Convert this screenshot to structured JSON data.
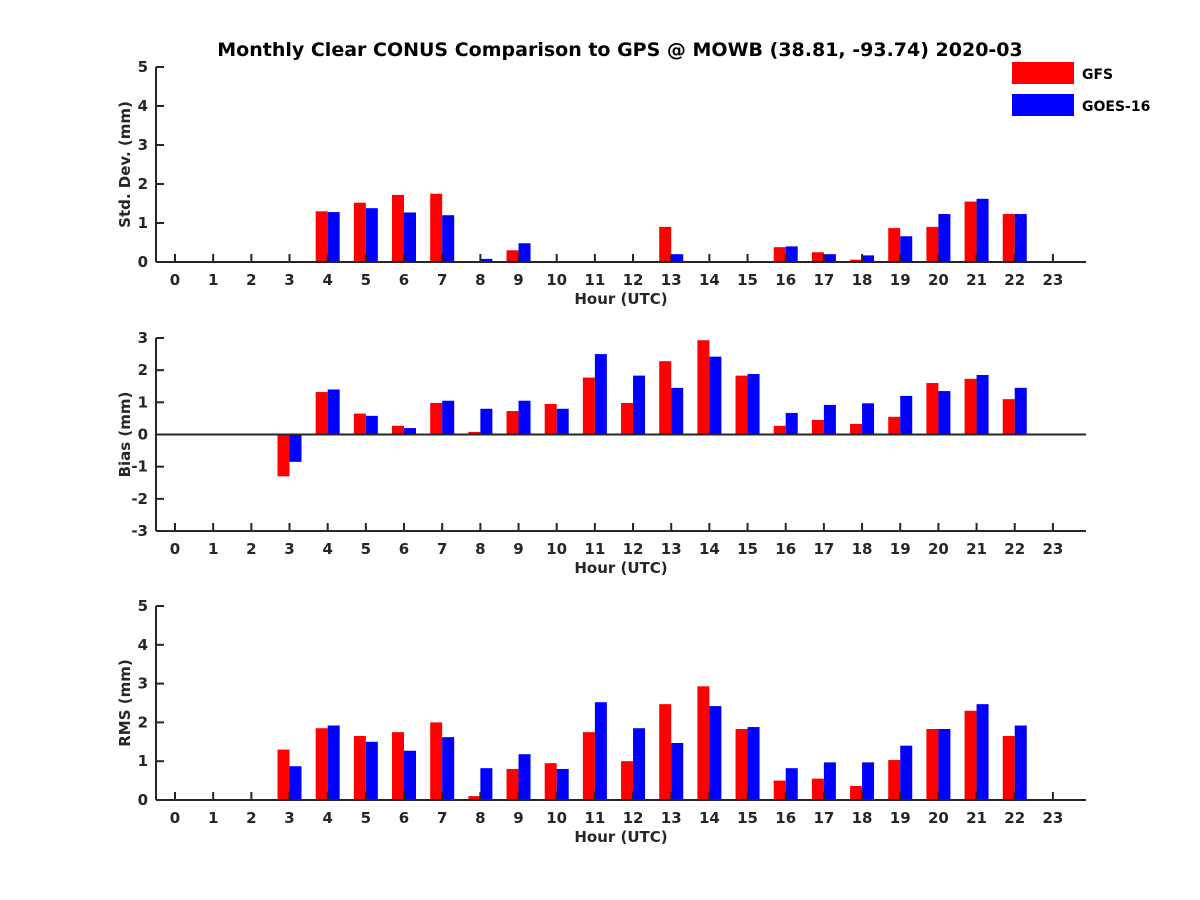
{
  "title": "Monthly Clear CONUS Comparison to GPS @ MOWB (38.81, -93.74) 2020-03",
  "colors": {
    "GFS": "#ff0000",
    "GOES-16": "#0000ff",
    "axis": "#262626"
  },
  "legend": {
    "placement": "top-right",
    "entries": [
      "GFS",
      "GOES-16"
    ]
  },
  "chart_data": [
    {
      "type": "bar",
      "ylabel": "Std. Dev. (mm)",
      "xlabel": "Hour (UTC)",
      "ylim": [
        0,
        5
      ],
      "yticks": [
        0,
        1,
        2,
        3,
        4,
        5
      ],
      "categories": [
        0,
        1,
        2,
        3,
        4,
        5,
        6,
        7,
        8,
        9,
        10,
        11,
        12,
        13,
        14,
        15,
        16,
        17,
        18,
        19,
        20,
        21,
        22,
        23
      ],
      "series": [
        {
          "name": "GFS",
          "values": [
            null,
            null,
            null,
            null,
            1.3,
            1.52,
            1.72,
            1.75,
            0.02,
            0.3,
            null,
            null,
            null,
            0.9,
            null,
            null,
            0.38,
            0.25,
            0.06,
            0.87,
            0.9,
            1.55,
            1.23,
            null
          ]
        },
        {
          "name": "GOES-16",
          "values": [
            null,
            null,
            null,
            null,
            1.28,
            1.38,
            1.27,
            1.2,
            0.08,
            0.48,
            null,
            null,
            null,
            0.2,
            null,
            null,
            0.4,
            0.2,
            0.17,
            0.66,
            1.23,
            1.62,
            1.23,
            null
          ]
        }
      ]
    },
    {
      "type": "bar",
      "ylabel": "Bias (mm)",
      "xlabel": "Hour (UTC)",
      "ylim": [
        -3,
        3
      ],
      "yticks": [
        -3,
        -2,
        -1,
        0,
        1,
        2,
        3
      ],
      "categories": [
        0,
        1,
        2,
        3,
        4,
        5,
        6,
        7,
        8,
        9,
        10,
        11,
        12,
        13,
        14,
        15,
        16,
        17,
        18,
        19,
        20,
        21,
        22,
        23
      ],
      "series": [
        {
          "name": "GFS",
          "values": [
            null,
            null,
            null,
            -1.3,
            1.32,
            0.65,
            0.27,
            0.98,
            0.08,
            0.73,
            0.95,
            1.77,
            0.98,
            2.28,
            2.93,
            1.83,
            0.27,
            0.45,
            0.33,
            0.55,
            1.6,
            1.73,
            1.1,
            null
          ]
        },
        {
          "name": "GOES-16",
          "values": [
            null,
            null,
            null,
            -0.85,
            1.4,
            0.58,
            0.2,
            1.05,
            0.8,
            1.05,
            0.8,
            2.5,
            1.83,
            1.45,
            2.42,
            1.88,
            0.67,
            0.92,
            0.97,
            1.2,
            1.35,
            1.85,
            1.45,
            null
          ]
        }
      ]
    },
    {
      "type": "bar",
      "ylabel": "RMS (mm)",
      "xlabel": "Hour (UTC)",
      "ylim": [
        0,
        5
      ],
      "yticks": [
        0,
        1,
        2,
        3,
        4,
        5
      ],
      "categories": [
        0,
        1,
        2,
        3,
        4,
        5,
        6,
        7,
        8,
        9,
        10,
        11,
        12,
        13,
        14,
        15,
        16,
        17,
        18,
        19,
        20,
        21,
        22,
        23
      ],
      "series": [
        {
          "name": "GFS",
          "values": [
            null,
            null,
            null,
            1.3,
            1.85,
            1.65,
            1.75,
            2.0,
            0.1,
            0.8,
            0.95,
            1.75,
            1.0,
            2.47,
            2.93,
            1.83,
            0.5,
            0.55,
            0.36,
            1.03,
            1.83,
            2.3,
            1.65,
            null
          ]
        },
        {
          "name": "GOES-16",
          "values": [
            null,
            null,
            null,
            0.87,
            1.92,
            1.5,
            1.27,
            1.62,
            0.82,
            1.18,
            0.8,
            2.52,
            1.85,
            1.47,
            2.42,
            1.88,
            0.82,
            0.97,
            0.97,
            1.4,
            1.83,
            2.47,
            1.92,
            null
          ]
        }
      ]
    }
  ]
}
